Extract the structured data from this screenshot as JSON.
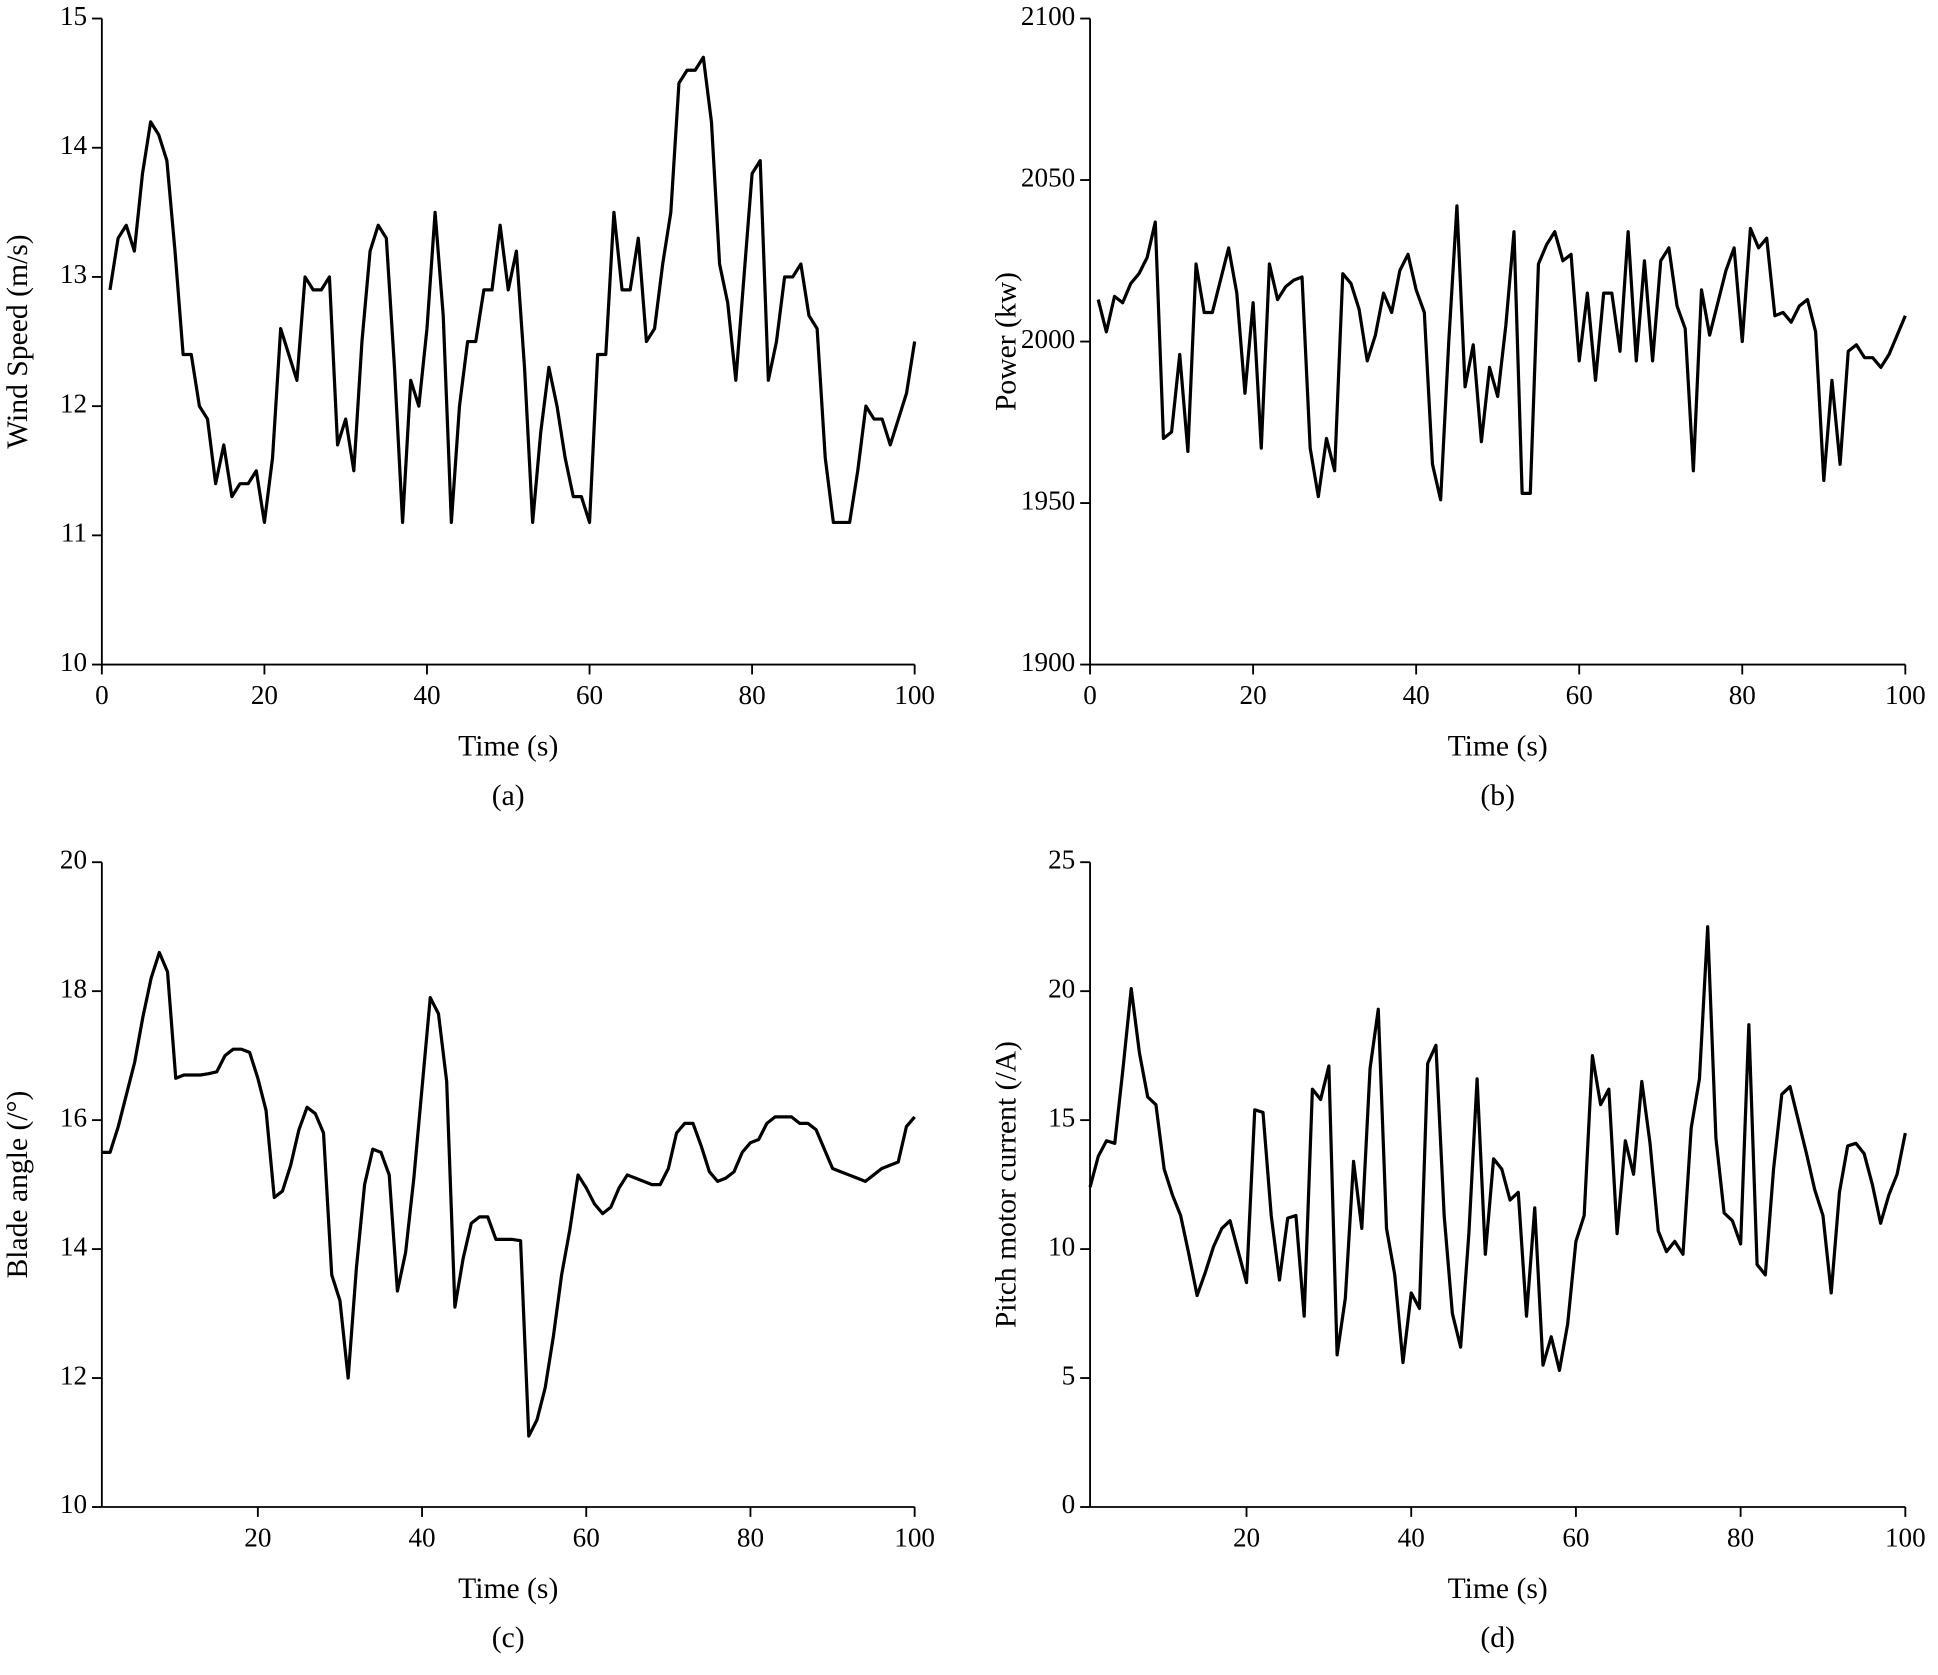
{
  "chart_data": [
    {
      "type": "line",
      "caption": "(a)",
      "xlabel": "Time (s)",
      "ylabel": "Wind Speed (m/s)",
      "color": "#000000",
      "xlim": [
        0,
        100
      ],
      "xticks": [
        0,
        20,
        40,
        60,
        80,
        100
      ],
      "ylim": [
        10,
        15
      ],
      "yticks": [
        10,
        11,
        12,
        13,
        14,
        15
      ],
      "x": [
        1,
        2,
        3,
        4,
        5,
        6,
        7,
        8,
        9,
        10,
        11,
        12,
        13,
        14,
        15,
        16,
        17,
        18,
        19,
        20,
        21,
        22,
        23,
        24,
        25,
        26,
        27,
        28,
        29,
        30,
        31,
        32,
        33,
        34,
        35,
        36,
        37,
        38,
        39,
        40,
        41,
        42,
        43,
        44,
        45,
        46,
        47,
        48,
        49,
        50,
        51,
        52,
        53,
        54,
        55,
        56,
        57,
        58,
        59,
        60,
        61,
        62,
        63,
        64,
        65,
        66,
        67,
        68,
        69,
        70,
        71,
        72,
        73,
        74,
        75,
        76,
        77,
        78,
        79,
        80,
        81,
        82,
        83,
        84,
        85,
        86,
        87,
        88,
        89,
        90,
        91,
        92,
        93,
        94,
        95,
        96,
        97,
        98,
        99,
        100
      ],
      "values": [
        12.9,
        13.3,
        13.4,
        13.2,
        13.8,
        14.2,
        14.1,
        13.9,
        13.2,
        12.4,
        12.4,
        12.0,
        11.9,
        11.4,
        11.7,
        11.3,
        11.4,
        11.4,
        11.5,
        11.1,
        11.6,
        12.6,
        12.4,
        12.2,
        13.0,
        12.9,
        12.9,
        13.0,
        11.7,
        11.9,
        11.5,
        12.5,
        13.2,
        13.4,
        13.3,
        12.3,
        11.1,
        12.2,
        12.0,
        12.6,
        13.5,
        12.7,
        11.1,
        12.0,
        12.5,
        12.5,
        12.9,
        12.9,
        13.4,
        12.9,
        13.2,
        12.3,
        11.1,
        11.8,
        12.3,
        12.0,
        11.6,
        11.3,
        11.3,
        11.1,
        12.4,
        12.4,
        13.5,
        12.9,
        12.9,
        13.3,
        12.5,
        12.6,
        13.1,
        13.5,
        14.5,
        14.6,
        14.6,
        14.7,
        14.2,
        13.1,
        12.8,
        12.2,
        13.0,
        13.8,
        13.9,
        12.2,
        12.5,
        13.0,
        13.0,
        13.1,
        12.7,
        12.6,
        11.6,
        11.1,
        11.1,
        11.1,
        11.5,
        12.0,
        11.9,
        11.9,
        11.7,
        11.9,
        12.1,
        12.5
      ]
    },
    {
      "type": "line",
      "caption": "(b)",
      "xlabel": "Time (s)",
      "ylabel": "Power (kw)",
      "color": "#000000",
      "xlim": [
        0,
        100
      ],
      "xticks": [
        0,
        20,
        40,
        60,
        80,
        100
      ],
      "ylim": [
        1900,
        2100
      ],
      "yticks": [
        1900,
        1950,
        2000,
        2050,
        2100
      ],
      "x": [
        1,
        2,
        3,
        4,
        5,
        6,
        7,
        8,
        9,
        10,
        11,
        12,
        13,
        14,
        15,
        16,
        17,
        18,
        19,
        20,
        21,
        22,
        23,
        24,
        25,
        26,
        27,
        28,
        29,
        30,
        31,
        32,
        33,
        34,
        35,
        36,
        37,
        38,
        39,
        40,
        41,
        42,
        43,
        44,
        45,
        46,
        47,
        48,
        49,
        50,
        51,
        52,
        53,
        54,
        55,
        56,
        57,
        58,
        59,
        60,
        61,
        62,
        63,
        64,
        65,
        66,
        67,
        68,
        69,
        70,
        71,
        72,
        73,
        74,
        75,
        76,
        77,
        78,
        79,
        80,
        81,
        82,
        83,
        84,
        85,
        86,
        87,
        88,
        89,
        90,
        91,
        92,
        93,
        94,
        95,
        96,
        97,
        98,
        99,
        100
      ],
      "values": [
        2013,
        2003,
        2014,
        2012,
        2018,
        2021,
        2026,
        2037,
        1970,
        1972,
        1996,
        1966,
        2024,
        2009,
        2009,
        2019,
        2029,
        2015,
        1984,
        2012,
        1967,
        2024,
        2013,
        2017,
        2019,
        2020,
        1967,
        1952,
        1970,
        1960,
        2021,
        2018,
        2010,
        1994,
        2002,
        2015,
        2009,
        2022,
        2027,
        2016,
        2009,
        1962,
        1951,
        2000,
        2042,
        1986,
        1999,
        1969,
        1992,
        1983,
        2005,
        2034,
        1953,
        1953,
        2024,
        2030,
        2034,
        2025,
        2027,
        1994,
        2015,
        1988,
        2015,
        2015,
        1997,
        2034,
        1994,
        2025,
        1994,
        2025,
        2029,
        2011,
        2004,
        1960,
        2016,
        2002,
        2012,
        2022,
        2029,
        2000,
        2035,
        2029,
        2032,
        2008,
        2009,
        2006,
        2011,
        2013,
        2003,
        1957,
        1988,
        1962,
        1997,
        1999,
        1995,
        1995,
        1992,
        1996,
        2002,
        2008
      ]
    },
    {
      "type": "line",
      "caption": "(c)",
      "xlabel": "Time (s)",
      "ylabel": "Blade angle (/°)",
      "color": "#000000",
      "xlim": [
        1,
        100
      ],
      "xticks": [
        20,
        40,
        60,
        80,
        100
      ],
      "ylim": [
        10,
        20
      ],
      "yticks": [
        10,
        12,
        14,
        16,
        18,
        20
      ],
      "x": [
        1,
        2,
        3,
        4,
        5,
        6,
        7,
        8,
        9,
        10,
        11,
        12,
        13,
        14,
        15,
        16,
        17,
        18,
        19,
        20,
        21,
        22,
        23,
        24,
        25,
        26,
        27,
        28,
        29,
        30,
        31,
        32,
        33,
        34,
        35,
        36,
        37,
        38,
        39,
        40,
        41,
        42,
        43,
        44,
        45,
        46,
        47,
        48,
        49,
        50,
        51,
        52,
        53,
        54,
        55,
        56,
        57,
        58,
        59,
        60,
        61,
        62,
        63,
        64,
        65,
        66,
        67,
        68,
        69,
        70,
        71,
        72,
        73,
        74,
        75,
        76,
        77,
        78,
        79,
        80,
        81,
        82,
        83,
        84,
        85,
        86,
        87,
        88,
        89,
        90,
        91,
        92,
        93,
        94,
        95,
        96,
        97,
        98,
        99,
        100
      ],
      "values": [
        15.5,
        15.5,
        15.9,
        16.4,
        16.9,
        17.6,
        18.2,
        18.6,
        18.3,
        16.65,
        16.7,
        16.7,
        16.7,
        16.72,
        16.75,
        17.0,
        17.1,
        17.1,
        17.05,
        16.65,
        16.15,
        14.8,
        14.9,
        15.3,
        15.85,
        16.2,
        16.1,
        15.8,
        13.6,
        13.2,
        12.0,
        13.7,
        15.0,
        15.55,
        15.5,
        15.15,
        13.35,
        13.95,
        15.1,
        16.5,
        17.9,
        17.65,
        16.6,
        13.1,
        13.85,
        14.4,
        14.5,
        14.5,
        14.15,
        14.15,
        14.15,
        14.13,
        11.1,
        11.35,
        11.85,
        12.65,
        13.6,
        14.3,
        15.15,
        14.95,
        14.7,
        14.55,
        14.65,
        14.95,
        15.15,
        15.1,
        15.05,
        15.0,
        15.0,
        15.25,
        15.8,
        15.95,
        15.95,
        15.6,
        15.2,
        15.05,
        15.1,
        15.2,
        15.5,
        15.65,
        15.7,
        15.95,
        16.05,
        16.05,
        16.05,
        15.95,
        15.95,
        15.85,
        15.55,
        15.25,
        15.2,
        15.15,
        15.1,
        15.05,
        15.15,
        15.25,
        15.3,
        15.35,
        15.9,
        16.05
      ]
    },
    {
      "type": "line",
      "caption": "(d)",
      "xlabel": "Time (s)",
      "ylabel": "Pitch motor current (/A)",
      "color": "#000000",
      "xlim": [
        1,
        100
      ],
      "xticks": [
        20,
        40,
        60,
        80,
        100
      ],
      "ylim": [
        0,
        25
      ],
      "yticks": [
        0,
        5,
        10,
        15,
        20,
        25
      ],
      "x": [
        1,
        2,
        3,
        4,
        5,
        6,
        7,
        8,
        9,
        10,
        11,
        12,
        13,
        14,
        15,
        16,
        17,
        18,
        19,
        20,
        21,
        22,
        23,
        24,
        25,
        26,
        27,
        28,
        29,
        30,
        31,
        32,
        33,
        34,
        35,
        36,
        37,
        38,
        39,
        40,
        41,
        42,
        43,
        44,
        45,
        46,
        47,
        48,
        49,
        50,
        51,
        52,
        53,
        54,
        55,
        56,
        57,
        58,
        59,
        60,
        61,
        62,
        63,
        64,
        65,
        66,
        67,
        68,
        69,
        70,
        71,
        72,
        73,
        74,
        75,
        76,
        77,
        78,
        79,
        80,
        81,
        82,
        83,
        84,
        85,
        86,
        87,
        88,
        89,
        90,
        91,
        92,
        93,
        94,
        95,
        96,
        97,
        98,
        99,
        100
      ],
      "values": [
        12.4,
        13.6,
        14.2,
        14.1,
        17.0,
        20.1,
        17.6,
        15.9,
        15.6,
        13.1,
        12.1,
        11.3,
        9.8,
        8.2,
        9.1,
        10.1,
        10.8,
        11.1,
        9.9,
        8.7,
        15.4,
        15.3,
        11.3,
        8.8,
        11.2,
        11.3,
        7.4,
        16.2,
        15.8,
        17.1,
        5.9,
        8.1,
        13.4,
        10.8,
        17.0,
        19.3,
        10.8,
        9.0,
        5.6,
        8.3,
        7.7,
        17.2,
        17.9,
        11.3,
        7.5,
        6.2,
        10.6,
        16.6,
        9.8,
        13.5,
        13.1,
        11.9,
        12.2,
        7.4,
        11.6,
        5.5,
        6.6,
        5.3,
        7.1,
        10.3,
        11.3,
        17.5,
        15.6,
        16.2,
        10.6,
        14.2,
        12.9,
        16.5,
        14.1,
        10.7,
        9.9,
        10.3,
        9.8,
        14.7,
        16.6,
        22.5,
        14.3,
        11.4,
        11.1,
        10.2,
        18.7,
        9.4,
        9.0,
        13.1,
        16.0,
        16.3,
        15.0,
        13.7,
        12.3,
        11.3,
        8.3,
        12.2,
        14.0,
        14.1,
        13.7,
        12.5,
        11.0,
        12.1,
        12.9,
        14.5
      ]
    }
  ]
}
